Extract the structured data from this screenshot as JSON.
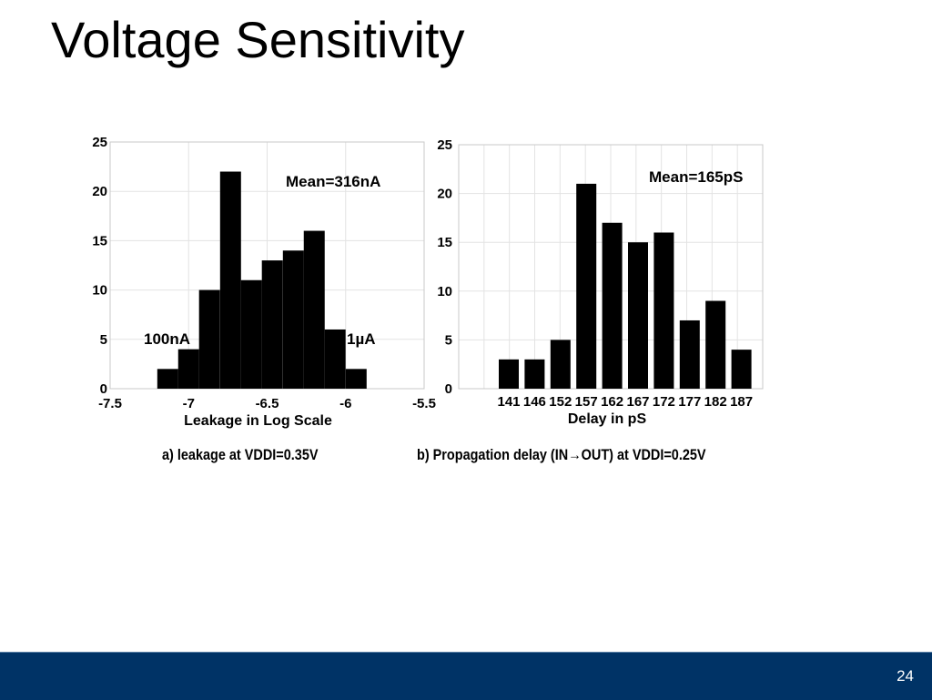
{
  "slide": {
    "title": "Voltage Sensitivity",
    "number": "24",
    "footer_color": "#003366"
  },
  "captions": {
    "a": "a) leakage at VDDI=0.35V",
    "b_prefix": "b) Propagation delay (IN",
    "b_suffix": "OUT) at VDDI=0.25V"
  },
  "chart_data": [
    {
      "type": "bar",
      "xlabel": "Leakage in Log Scale",
      "ylabel": "",
      "xlim": [
        -7.5,
        -5.5
      ],
      "ylim": [
        0,
        25
      ],
      "xticks": [
        "-7.5",
        "-7",
        "-6.5",
        "-6",
        "-5.5"
      ],
      "yticks": [
        "0",
        "5",
        "10",
        "15",
        "20",
        "25"
      ],
      "grid": true,
      "bin_width": 0.1333,
      "bin_centers": [
        -7.133,
        -7.0,
        -6.867,
        -6.733,
        -6.6,
        -6.467,
        -6.333,
        -6.2,
        -6.067,
        -5.933
      ],
      "values": [
        2,
        4,
        10,
        22,
        11,
        13,
        14,
        16,
        6,
        2
      ],
      "annotations": [
        {
          "text": "Mean=316nA"
        },
        {
          "text": "100nA"
        },
        {
          "text": "1µA"
        }
      ]
    },
    {
      "type": "bar",
      "xlabel": "Delay in pS",
      "ylabel": "",
      "ylim": [
        0,
        25
      ],
      "yticks": [
        "0",
        "5",
        "10",
        "15",
        "20",
        "25"
      ],
      "grid": true,
      "categories": [
        "141",
        "146",
        "152",
        "157",
        "162",
        "167",
        "172",
        "177",
        "182",
        "187"
      ],
      "values": [
        3,
        3,
        5,
        21,
        17,
        15,
        16,
        7,
        9,
        4
      ],
      "annotations": [
        {
          "text": "Mean=165pS"
        }
      ]
    }
  ]
}
